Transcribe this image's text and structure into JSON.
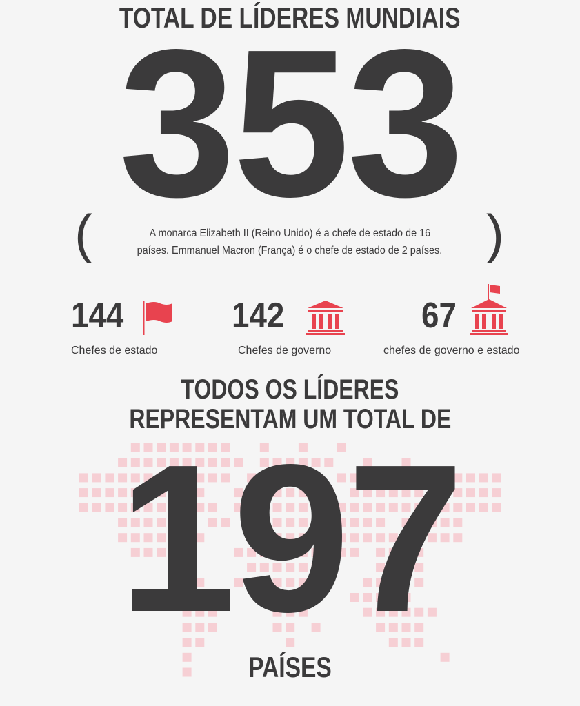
{
  "header": {
    "title": "TOTAL DE LÍDERES MUNDIAIS",
    "total_leaders": "353"
  },
  "note": {
    "line1": "A monarca Elizabeth II (Reino Unido) é a chefe de estado de 16",
    "line2": "países. Emmanuel Macron (França) é o chefe de estado de 2 países.",
    "open_paren": "(",
    "close_paren": ")"
  },
  "stats": [
    {
      "value": "144",
      "label": "Chefes de estado",
      "icon": "flag-icon"
    },
    {
      "value": "142",
      "label": "Chefes de governo",
      "icon": "government-building-icon"
    },
    {
      "value": "67",
      "label": "chefes de governo e estado",
      "icon": "building-with-flag-icon"
    }
  ],
  "countries": {
    "heading_line1": "TODOS OS LÍDERES",
    "heading_line2": "REPRESENTAM UM TOTAL DE",
    "total": "197",
    "unit": "PAÍSES"
  },
  "colors": {
    "text": "#3b3a3b",
    "accent": "#e8434f",
    "map": "#f6cfd4",
    "background": "#f5f5f5"
  }
}
